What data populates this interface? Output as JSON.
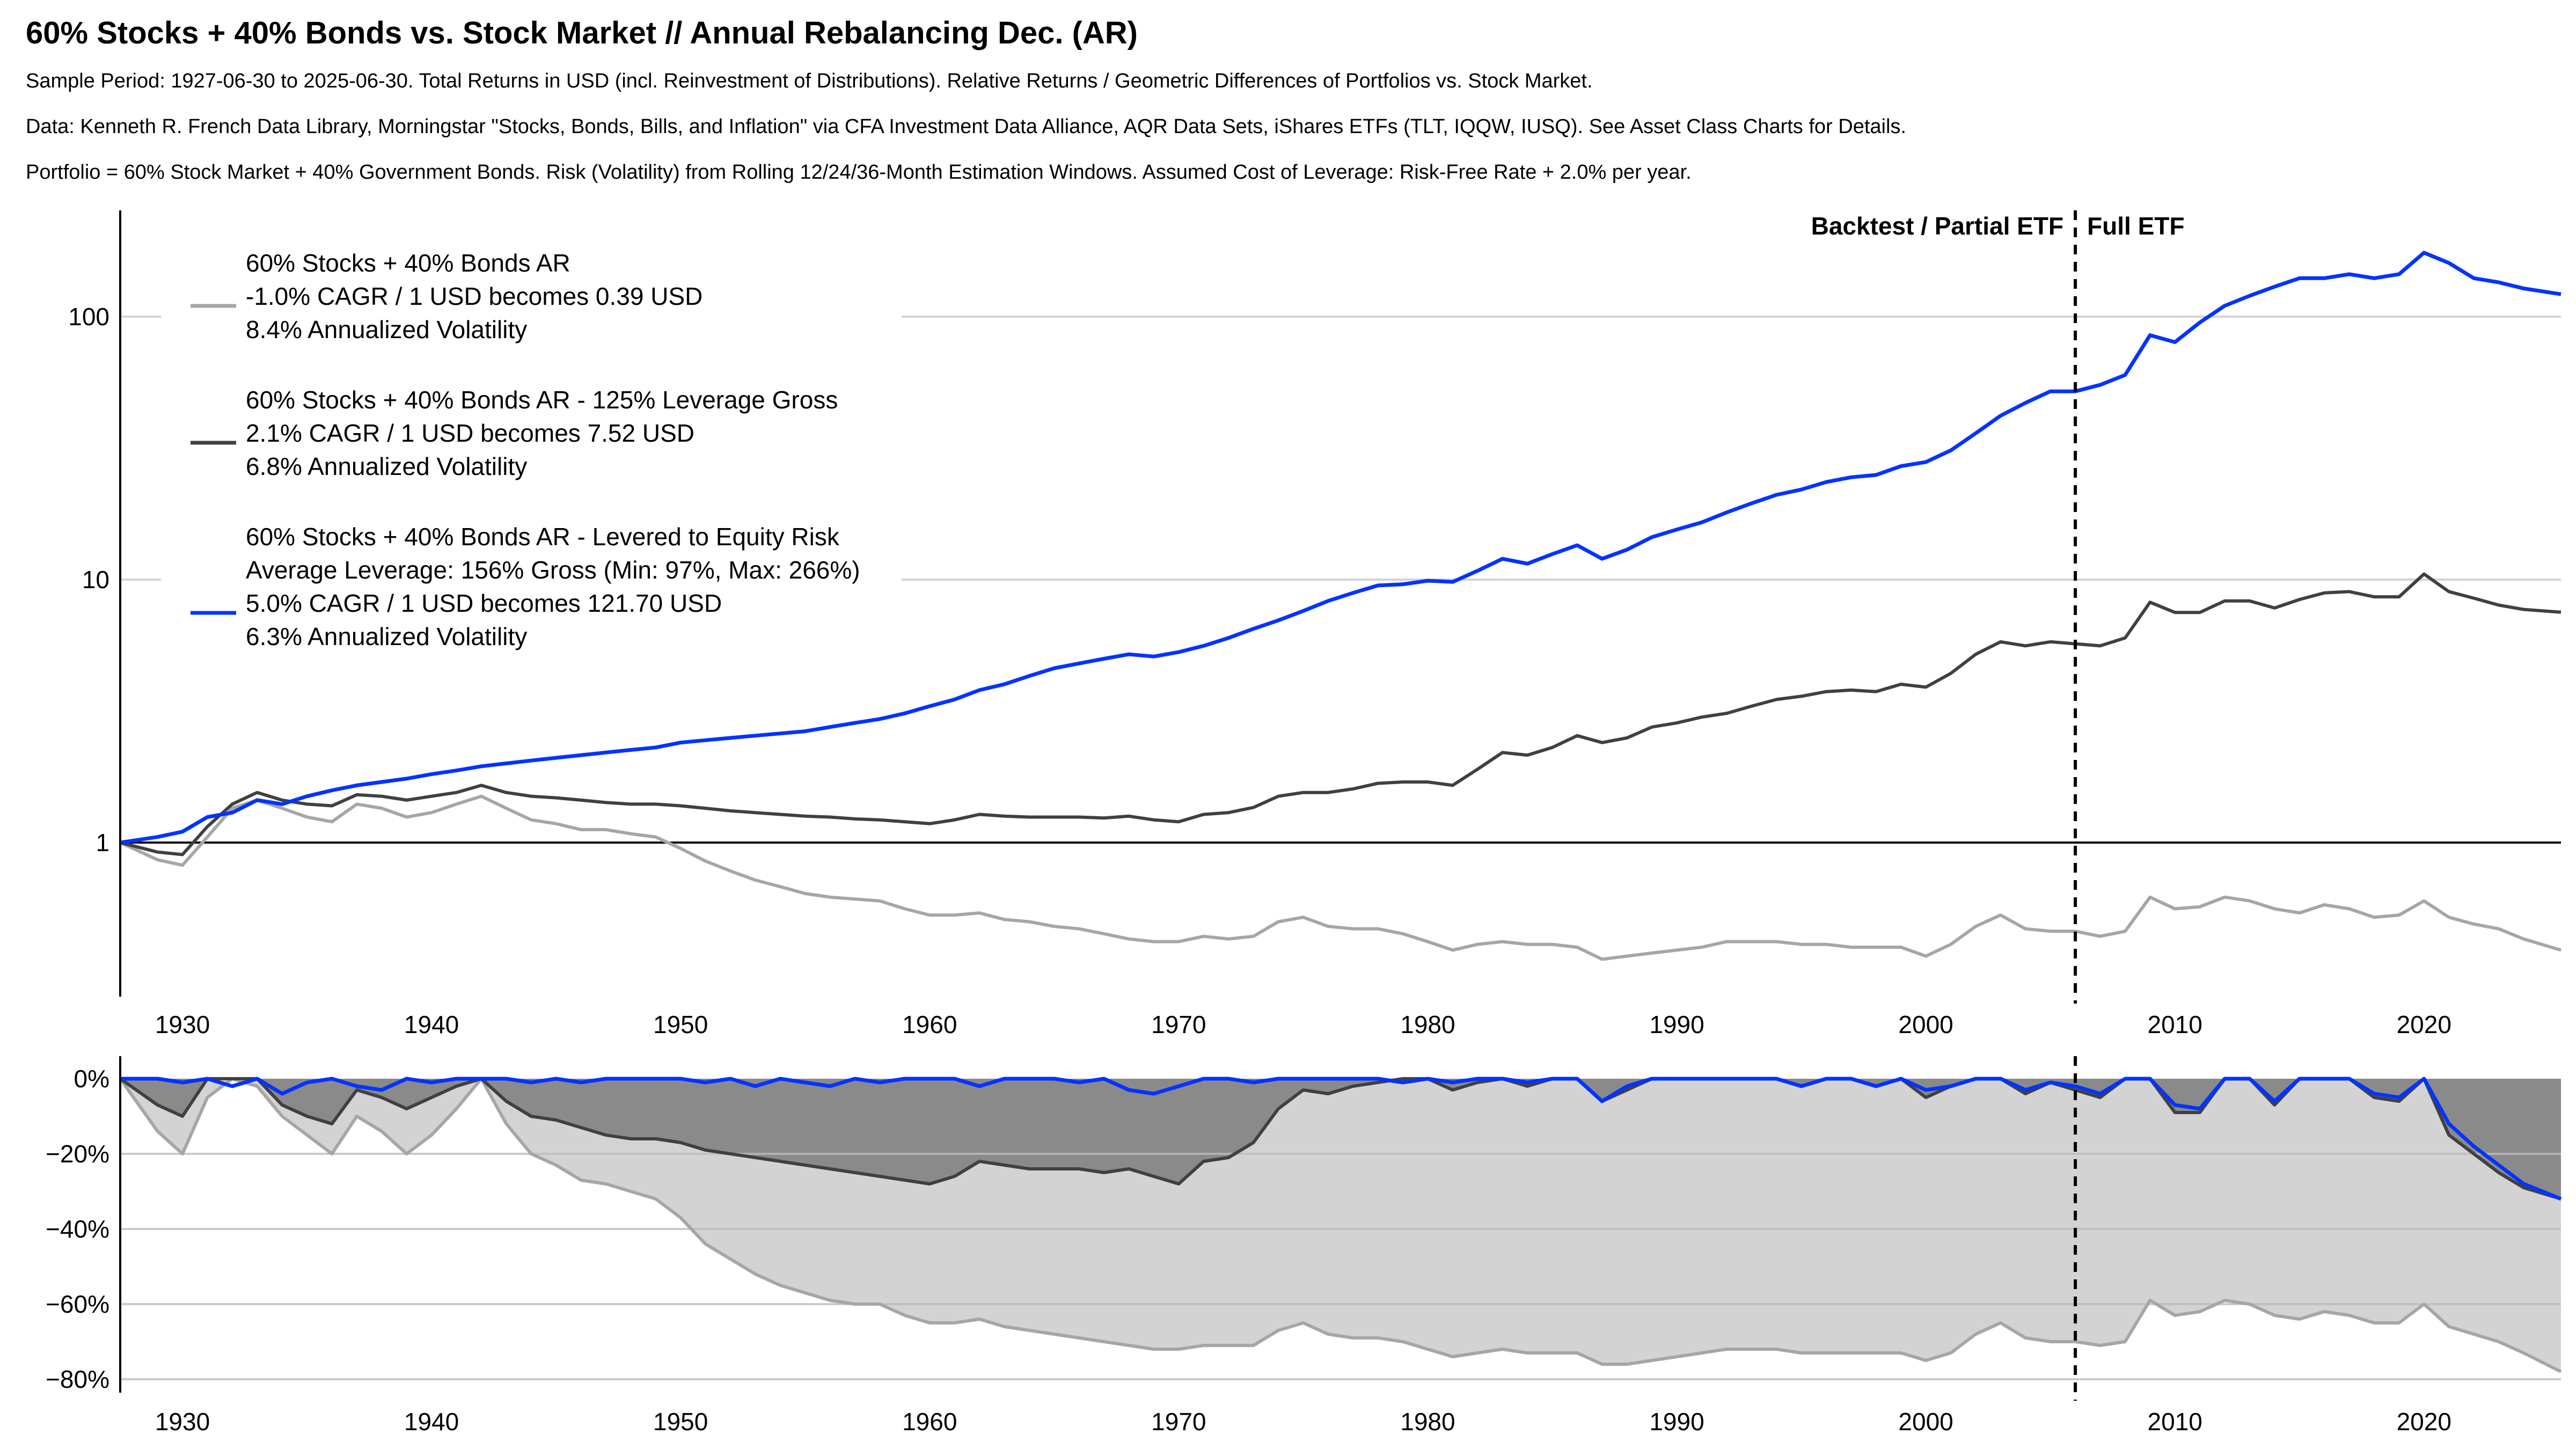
{
  "header": {
    "title": "60% Stocks + 40% Bonds vs. Stock Market // Annual Rebalancing Dec. (AR)",
    "subtitle_1": "Sample Period: 1927-06-30 to 2025-06-30. Total Returns in USD (incl. Reinvestment of Distributions). Relative Returns / Geometric Differences of Portfolios vs. Stock Market.",
    "subtitle_2": "Data: Kenneth R. French Data Library, Morningstar \"Stocks, Bonds, Bills, and Inflation\" via CFA Investment Data Alliance, AQR Data Sets, iShares ETFs (TLT, IQQW, IUSQ). See Asset Class Charts for Details.",
    "subtitle_3": "Portfolio = 60% Stock Market + 40% Government Bonds. Risk (Volatility) from Rolling 12/24/36-Month Estimation Windows. Assumed Cost of Leverage: Risk-Free Rate + 2.0% per year."
  },
  "colors": {
    "unlevered": "#a6a6a6",
    "lev125": "#404040",
    "levered_equity_risk": "#0433ff",
    "dd_fill_light": "#d3d3d3",
    "dd_fill_dark": "#8a8a8a",
    "grid": "#d3d3d3"
  },
  "chart_data": [
    {
      "type": "line",
      "title": "Relative Growth of 1 USD vs. Stock Market (log scale)",
      "xlabel": "",
      "ylabel": "",
      "yscale": "log",
      "xlim": [
        1927.5,
        2025.5
      ],
      "ylim": [
        0.3,
        230
      ],
      "xticks": [
        1930,
        1940,
        1950,
        1960,
        1970,
        1980,
        1990,
        2000,
        2010,
        2020
      ],
      "xtick_labels": [
        "1930",
        "1940",
        "1950",
        "1960",
        "1970",
        "1980",
        "1990",
        "2000",
        "2010",
        "2020"
      ],
      "yticks": [
        1,
        10,
        100
      ],
      "ytick_labels": [
        "1",
        "10",
        "100"
      ],
      "grid": "horizontal",
      "reference_line": 1,
      "legend_position": "top-left",
      "region_divider": {
        "x": 2006,
        "left_label": "Backtest / Partial ETF",
        "right_label": "Full ETF"
      },
      "x": [
        1927.5,
        1929,
        1930,
        1931,
        1932,
        1933,
        1934,
        1935,
        1936,
        1937,
        1938,
        1939,
        1940,
        1941,
        1942,
        1943,
        1944,
        1945,
        1946,
        1947,
        1948,
        1949,
        1950,
        1951,
        1952,
        1953,
        1954,
        1955,
        1956,
        1957,
        1958,
        1959,
        1960,
        1961,
        1962,
        1963,
        1964,
        1965,
        1966,
        1967,
        1968,
        1969,
        1970,
        1971,
        1972,
        1973,
        1974,
        1975,
        1976,
        1977,
        1978,
        1979,
        1980,
        1981,
        1982,
        1983,
        1984,
        1985,
        1986,
        1987,
        1988,
        1989,
        1990,
        1991,
        1992,
        1993,
        1994,
        1995,
        1996,
        1997,
        1998,
        1999,
        2000,
        2001,
        2002,
        2003,
        2004,
        2005,
        2006,
        2007,
        2008,
        2009,
        2010,
        2011,
        2012,
        2013,
        2014,
        2015,
        2016,
        2017,
        2018,
        2019,
        2020,
        2021,
        2022,
        2023,
        2024,
        2025.5
      ],
      "series": [
        {
          "name": "60% Stocks + 40% Bonds AR",
          "legend": [
            "60% Stocks + 40% Bonds AR",
            "-1.0% CAGR / 1 USD becomes 0.39 USD",
            "8.4% Annualized Volatility"
          ],
          "color_key": "unlevered",
          "values": [
            1.0,
            0.86,
            0.82,
            1.05,
            1.35,
            1.45,
            1.35,
            1.25,
            1.2,
            1.4,
            1.35,
            1.25,
            1.3,
            1.4,
            1.5,
            1.35,
            1.22,
            1.18,
            1.12,
            1.12,
            1.08,
            1.05,
            0.95,
            0.85,
            0.78,
            0.72,
            0.68,
            0.64,
            0.62,
            0.61,
            0.6,
            0.56,
            0.53,
            0.53,
            0.54,
            0.51,
            0.5,
            0.48,
            0.47,
            0.45,
            0.43,
            0.42,
            0.42,
            0.44,
            0.43,
            0.44,
            0.5,
            0.52,
            0.48,
            0.47,
            0.47,
            0.45,
            0.42,
            0.39,
            0.41,
            0.42,
            0.41,
            0.41,
            0.4,
            0.36,
            0.37,
            0.38,
            0.39,
            0.4,
            0.42,
            0.42,
            0.42,
            0.41,
            0.41,
            0.4,
            0.4,
            0.4,
            0.37,
            0.41,
            0.48,
            0.53,
            0.47,
            0.46,
            0.46,
            0.44,
            0.46,
            0.62,
            0.56,
            0.57,
            0.62,
            0.6,
            0.56,
            0.54,
            0.58,
            0.56,
            0.52,
            0.53,
            0.6,
            0.52,
            0.49,
            0.47,
            0.43,
            0.39
          ]
        },
        {
          "name": "60% Stocks + 40% Bonds AR - 125% Leverage Gross",
          "legend": [
            "60% Stocks + 40% Bonds AR - 125% Leverage Gross",
            "2.1% CAGR / 1 USD becomes 7.52 USD",
            "6.8% Annualized Volatility"
          ],
          "color_key": "lev125",
          "values": [
            1.0,
            0.92,
            0.9,
            1.15,
            1.4,
            1.55,
            1.45,
            1.4,
            1.38,
            1.52,
            1.5,
            1.45,
            1.5,
            1.55,
            1.65,
            1.55,
            1.5,
            1.48,
            1.45,
            1.42,
            1.4,
            1.4,
            1.38,
            1.35,
            1.32,
            1.3,
            1.28,
            1.26,
            1.25,
            1.23,
            1.22,
            1.2,
            1.18,
            1.22,
            1.28,
            1.26,
            1.25,
            1.25,
            1.25,
            1.24,
            1.26,
            1.22,
            1.2,
            1.28,
            1.3,
            1.36,
            1.5,
            1.55,
            1.55,
            1.6,
            1.68,
            1.7,
            1.7,
            1.65,
            1.9,
            2.2,
            2.15,
            2.3,
            2.55,
            2.4,
            2.5,
            2.75,
            2.85,
            3.0,
            3.1,
            3.3,
            3.5,
            3.6,
            3.75,
            3.8,
            3.75,
            4.0,
            3.9,
            4.4,
            5.2,
            5.8,
            5.6,
            5.8,
            5.7,
            5.6,
            6.0,
            8.2,
            7.5,
            7.5,
            8.3,
            8.3,
            7.8,
            8.4,
            8.9,
            9.0,
            8.6,
            8.6,
            10.5,
            9.0,
            8.5,
            8.0,
            7.7,
            7.52
          ]
        },
        {
          "name": "60% Stocks + 40% Bonds AR - Levered to Equity Risk",
          "legend": [
            "60% Stocks + 40% Bonds AR - Levered to Equity Risk",
            "Average Leverage: 156% Gross (Min: 97%, Max: 266%)",
            "5.0% CAGR / 1 USD becomes 121.70 USD",
            "6.3% Annualized Volatility"
          ],
          "color_key": "levered_equity_risk",
          "values": [
            1.0,
            1.05,
            1.1,
            1.25,
            1.3,
            1.45,
            1.4,
            1.5,
            1.58,
            1.65,
            1.7,
            1.75,
            1.82,
            1.88,
            1.95,
            2.0,
            2.05,
            2.1,
            2.15,
            2.2,
            2.25,
            2.3,
            2.4,
            2.45,
            2.5,
            2.55,
            2.6,
            2.65,
            2.75,
            2.85,
            2.95,
            3.1,
            3.3,
            3.5,
            3.8,
            4.0,
            4.3,
            4.6,
            4.8,
            5.0,
            5.2,
            5.1,
            5.3,
            5.6,
            6.0,
            6.5,
            7.0,
            7.6,
            8.3,
            8.9,
            9.5,
            9.6,
            9.9,
            9.8,
            10.8,
            12.0,
            11.5,
            12.5,
            13.5,
            12.0,
            13.0,
            14.5,
            15.5,
            16.5,
            18.0,
            19.5,
            21.0,
            22.0,
            23.5,
            24.5,
            25.0,
            27.0,
            28.0,
            31.0,
            36.0,
            42.0,
            47.0,
            52.0,
            52.0,
            55.0,
            60.0,
            85.0,
            80.0,
            95.0,
            110.0,
            120.0,
            130.0,
            140.0,
            140.0,
            145.0,
            140.0,
            145.0,
            175.0,
            160.0,
            140.0,
            135.0,
            128.0,
            121.7
          ]
        }
      ]
    },
    {
      "type": "area",
      "title": "Drawdown vs. Stock Market",
      "xlabel": "",
      "ylabel": "",
      "xlim": [
        1927.5,
        2025.5
      ],
      "ylim": [
        -0.84,
        0.02
      ],
      "yticks": [
        0,
        -0.2,
        -0.4,
        -0.6,
        -0.8
      ],
      "ytick_labels": [
        "0%",
        "−20%",
        "−40%",
        "−60%",
        "−80%"
      ],
      "xticks": [
        1930,
        1940,
        1950,
        1960,
        1970,
        1980,
        1990,
        2000,
        2010,
        2020
      ],
      "xtick_labels": [
        "1930",
        "1940",
        "1950",
        "1960",
        "1970",
        "1980",
        "1990",
        "2000",
        "2010",
        "2020"
      ],
      "grid": "horizontal",
      "region_divider": {
        "x": 2006
      },
      "x": [
        1927.5,
        1929,
        1930,
        1931,
        1932,
        1933,
        1934,
        1935,
        1936,
        1937,
        1938,
        1939,
        1940,
        1941,
        1942,
        1943,
        1944,
        1945,
        1946,
        1947,
        1948,
        1949,
        1950,
        1951,
        1952,
        1953,
        1954,
        1955,
        1956,
        1957,
        1958,
        1959,
        1960,
        1961,
        1962,
        1963,
        1964,
        1965,
        1966,
        1967,
        1968,
        1969,
        1970,
        1971,
        1972,
        1973,
        1974,
        1975,
        1976,
        1977,
        1978,
        1979,
        1980,
        1981,
        1982,
        1983,
        1984,
        1985,
        1986,
        1987,
        1988,
        1989,
        1990,
        1991,
        1992,
        1993,
        1994,
        1995,
        1996,
        1997,
        1998,
        1999,
        2000,
        2001,
        2002,
        2003,
        2004,
        2005,
        2006,
        2007,
        2008,
        2009,
        2010,
        2011,
        2012,
        2013,
        2014,
        2015,
        2016,
        2017,
        2018,
        2019,
        2020,
        2021,
        2022,
        2023,
        2024,
        2025.5
      ],
      "series": [
        {
          "name": "60% Stocks + 40% Bonds AR",
          "color_key": "unlevered",
          "fill_key": "dd_fill_light",
          "values": [
            0,
            -0.14,
            -0.2,
            -0.05,
            0,
            -0.02,
            -0.1,
            -0.15,
            -0.2,
            -0.1,
            -0.14,
            -0.2,
            -0.15,
            -0.08,
            0,
            -0.12,
            -0.2,
            -0.23,
            -0.27,
            -0.28,
            -0.3,
            -0.32,
            -0.37,
            -0.44,
            -0.48,
            -0.52,
            -0.55,
            -0.57,
            -0.59,
            -0.6,
            -0.6,
            -0.63,
            -0.65,
            -0.65,
            -0.64,
            -0.66,
            -0.67,
            -0.68,
            -0.69,
            -0.7,
            -0.71,
            -0.72,
            -0.72,
            -0.71,
            -0.71,
            -0.71,
            -0.67,
            -0.65,
            -0.68,
            -0.69,
            -0.69,
            -0.7,
            -0.72,
            -0.74,
            -0.73,
            -0.72,
            -0.73,
            -0.73,
            -0.73,
            -0.76,
            -0.76,
            -0.75,
            -0.74,
            -0.73,
            -0.72,
            -0.72,
            -0.72,
            -0.73,
            -0.73,
            -0.73,
            -0.73,
            -0.73,
            -0.75,
            -0.73,
            -0.68,
            -0.65,
            -0.69,
            -0.7,
            -0.7,
            -0.71,
            -0.7,
            -0.59,
            -0.63,
            -0.62,
            -0.59,
            -0.6,
            -0.63,
            -0.64,
            -0.62,
            -0.63,
            -0.65,
            -0.65,
            -0.6,
            -0.66,
            -0.68,
            -0.7,
            -0.73,
            -0.78
          ]
        },
        {
          "name": "60% Stocks + 40% Bonds AR - 125% Leverage Gross",
          "color_key": "lev125",
          "fill_key": "dd_fill_dark",
          "values": [
            0,
            -0.07,
            -0.1,
            0,
            0,
            0,
            -0.07,
            -0.1,
            -0.12,
            -0.03,
            -0.05,
            -0.08,
            -0.05,
            -0.02,
            0,
            -0.06,
            -0.1,
            -0.11,
            -0.13,
            -0.15,
            -0.16,
            -0.16,
            -0.17,
            -0.19,
            -0.2,
            -0.21,
            -0.22,
            -0.23,
            -0.24,
            -0.25,
            -0.26,
            -0.27,
            -0.28,
            -0.26,
            -0.22,
            -0.23,
            -0.24,
            -0.24,
            -0.24,
            -0.25,
            -0.24,
            -0.26,
            -0.28,
            -0.22,
            -0.21,
            -0.17,
            -0.08,
            -0.03,
            -0.04,
            -0.02,
            -0.01,
            0,
            0,
            -0.03,
            -0.01,
            0,
            -0.02,
            0,
            0,
            -0.06,
            -0.03,
            0,
            0,
            0,
            0,
            0,
            0,
            -0.02,
            0,
            0,
            -0.02,
            0,
            -0.05,
            -0.02,
            0,
            0,
            -0.04,
            -0.01,
            -0.03,
            -0.05,
            0,
            0,
            -0.09,
            -0.09,
            0,
            0,
            -0.07,
            0,
            0,
            0,
            -0.05,
            -0.06,
            0,
            -0.15,
            -0.2,
            -0.25,
            -0.29,
            -0.32
          ]
        },
        {
          "name": "60% Stocks + 40% Bonds AR - Levered to Equity Risk",
          "color_key": "levered_equity_risk",
          "fill_key": null,
          "values": [
            0,
            0,
            -0.01,
            0,
            -0.02,
            0,
            -0.04,
            -0.01,
            0,
            -0.02,
            -0.03,
            0,
            -0.01,
            0,
            0,
            0,
            -0.01,
            0,
            -0.01,
            0,
            0,
            0,
            0,
            -0.01,
            0,
            -0.02,
            0,
            -0.01,
            -0.02,
            0,
            -0.01,
            0,
            0,
            0,
            -0.02,
            0,
            0,
            0,
            -0.01,
            0,
            -0.03,
            -0.04,
            -0.02,
            0,
            0,
            -0.01,
            0,
            0,
            0,
            0,
            0,
            -0.01,
            0,
            -0.01,
            0,
            0,
            -0.01,
            0,
            0,
            -0.06,
            -0.02,
            0,
            0,
            0,
            0,
            0,
            0,
            -0.02,
            0,
            0,
            -0.02,
            0,
            -0.03,
            -0.02,
            0,
            0,
            -0.03,
            -0.01,
            -0.02,
            -0.04,
            0,
            0,
            -0.07,
            -0.08,
            0,
            0,
            -0.06,
            0,
            0,
            0,
            -0.04,
            -0.05,
            0,
            -0.12,
            -0.18,
            -0.23,
            -0.28,
            -0.32
          ]
        }
      ]
    }
  ]
}
